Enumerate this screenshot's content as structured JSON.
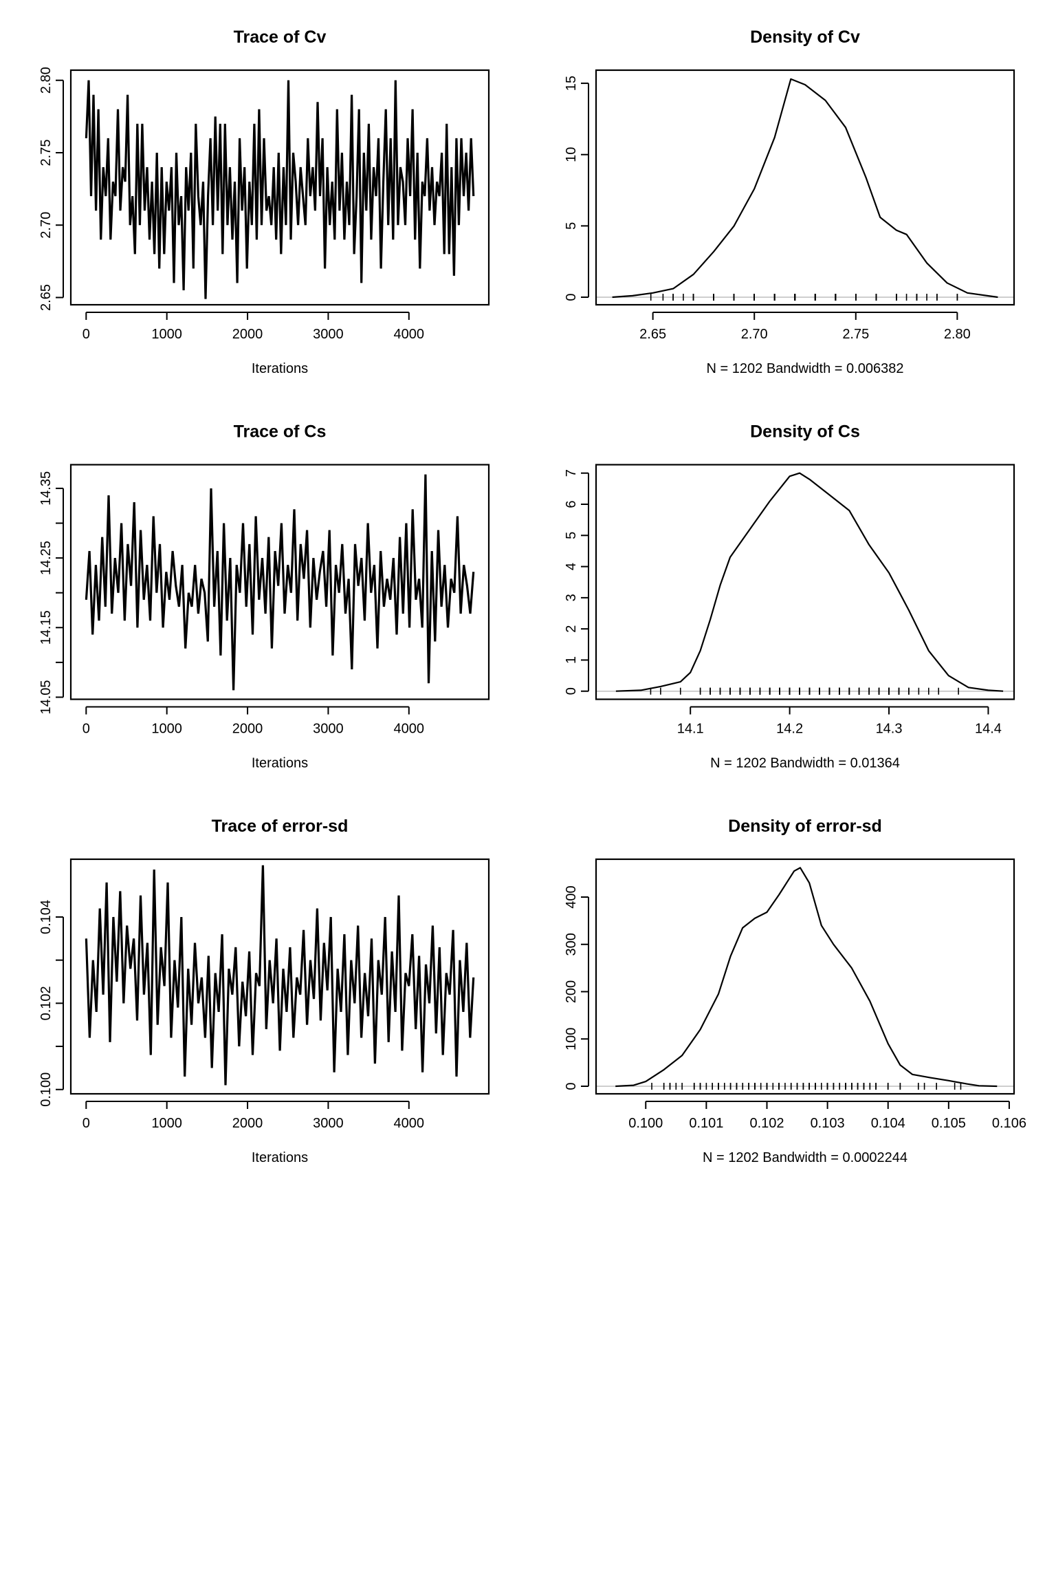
{
  "chart_data": [
    {
      "type": "line",
      "title": "Trace of Cv",
      "xlabel": "Iterations",
      "xlim": [
        -190,
        4990
      ],
      "ylim": [
        2.645,
        2.807
      ],
      "xticks": [
        0,
        1000,
        2000,
        3000,
        4000
      ],
      "xtick_labels": [
        "0",
        "1000",
        "2000",
        "3000",
        "4000"
      ],
      "yticks": [
        2.65,
        2.7,
        2.75,
        2.8
      ],
      "ytick_labels": [
        "2.65",
        "2.70",
        "2.75",
        "2.80"
      ],
      "x_start": 1,
      "x_end": 4800,
      "values": [
        2.76,
        2.8,
        2.72,
        2.79,
        2.71,
        2.78,
        2.69,
        2.74,
        2.72,
        2.76,
        2.69,
        2.73,
        2.72,
        2.78,
        2.71,
        2.74,
        2.73,
        2.79,
        2.7,
        2.72,
        2.68,
        2.77,
        2.7,
        2.77,
        2.71,
        2.74,
        2.69,
        2.73,
        2.68,
        2.75,
        2.67,
        2.74,
        2.68,
        2.73,
        2.71,
        2.74,
        2.66,
        2.75,
        2.7,
        2.72,
        2.655,
        2.74,
        2.71,
        2.75,
        2.67,
        2.77,
        2.72,
        2.7,
        2.73,
        2.649,
        2.72,
        2.76,
        2.7,
        2.775,
        2.71,
        2.77,
        2.68,
        2.77,
        2.7,
        2.74,
        2.69,
        2.73,
        2.66,
        2.76,
        2.71,
        2.74,
        2.67,
        2.73,
        2.7,
        2.77,
        2.69,
        2.78,
        2.7,
        2.76,
        2.71,
        2.72,
        2.7,
        2.74,
        2.69,
        2.75,
        2.68,
        2.74,
        2.7,
        2.8,
        2.69,
        2.75,
        2.73,
        2.7,
        2.74,
        2.72,
        2.7,
        2.76,
        2.72,
        2.74,
        2.71,
        2.785,
        2.72,
        2.76,
        2.67,
        2.74,
        2.7,
        2.73,
        2.69,
        2.78,
        2.71,
        2.75,
        2.69,
        2.73,
        2.7,
        2.79,
        2.68,
        2.72,
        2.78,
        2.66,
        2.75,
        2.71,
        2.77,
        2.69,
        2.74,
        2.72,
        2.76,
        2.67,
        2.73,
        2.78,
        2.7,
        2.76,
        2.69,
        2.8,
        2.7,
        2.74,
        2.73,
        2.7,
        2.76,
        2.72,
        2.78,
        2.69,
        2.75,
        2.67,
        2.73,
        2.72,
        2.76,
        2.71,
        2.74,
        2.7,
        2.73,
        2.72,
        2.75,
        2.68,
        2.77,
        2.68,
        2.74,
        2.665,
        2.76,
        2.7,
        2.76,
        2.72,
        2.75,
        2.71,
        2.76,
        2.72
      ]
    },
    {
      "type": "line",
      "title": "Density of Cv",
      "xlabel": "N = 1202   Bandwidth = 0.006382",
      "xlim": [
        2.622,
        2.828
      ],
      "ylim": [
        -0.53,
        15.92
      ],
      "xticks": [
        2.65,
        2.7,
        2.75,
        2.8
      ],
      "xtick_labels": [
        "2.65",
        "2.70",
        "2.75",
        "2.80"
      ],
      "yticks": [
        0,
        5,
        10,
        15
      ],
      "ytick_labels": [
        "0",
        "5",
        "10",
        "15"
      ],
      "x": [
        2.63,
        2.64,
        2.65,
        2.66,
        2.67,
        2.68,
        2.69,
        2.7,
        2.71,
        2.718,
        2.725,
        2.735,
        2.745,
        2.755,
        2.762,
        2.77,
        2.775,
        2.785,
        2.795,
        2.805,
        2.82
      ],
      "y": [
        0.0,
        0.1,
        0.3,
        0.6,
        1.6,
        3.2,
        5.0,
        7.6,
        11.2,
        15.3,
        14.9,
        13.8,
        11.9,
        8.4,
        5.6,
        4.7,
        4.4,
        2.4,
        1.0,
        0.3,
        0.0
      ],
      "rug_from": 0
    },
    {
      "type": "line",
      "title": "Trace of Cs",
      "xlabel": "Iterations",
      "xlim": [
        -190,
        4990
      ],
      "ylim": [
        14.047,
        14.384
      ],
      "xticks": [
        0,
        1000,
        2000,
        3000,
        4000
      ],
      "xtick_labels": [
        "0",
        "1000",
        "2000",
        "3000",
        "4000"
      ],
      "yticks": [
        14.05,
        14.1,
        14.15,
        14.2,
        14.25,
        14.3,
        14.35
      ],
      "ytick_labels": [
        "14.05",
        "",
        "14.15",
        "",
        "14.25",
        "",
        "14.35"
      ],
      "x_start": 1,
      "x_end": 4800,
      "values": [
        14.19,
        14.26,
        14.14,
        14.24,
        14.16,
        14.28,
        14.18,
        14.34,
        14.17,
        14.25,
        14.2,
        14.3,
        14.16,
        14.27,
        14.21,
        14.33,
        14.15,
        14.29,
        14.19,
        14.24,
        14.16,
        14.31,
        14.2,
        14.27,
        14.15,
        14.23,
        14.19,
        14.26,
        14.21,
        14.18,
        14.24,
        14.12,
        14.2,
        14.18,
        14.24,
        14.17,
        14.22,
        14.2,
        14.13,
        14.35,
        14.18,
        14.26,
        14.11,
        14.3,
        14.16,
        14.25,
        14.06,
        14.24,
        14.2,
        14.3,
        14.18,
        14.27,
        14.14,
        14.31,
        14.19,
        14.25,
        14.17,
        14.28,
        14.12,
        14.26,
        14.21,
        14.3,
        14.17,
        14.24,
        14.2,
        14.32,
        14.16,
        14.27,
        14.22,
        14.29,
        14.15,
        14.25,
        14.19,
        14.23,
        14.26,
        14.18,
        14.29,
        14.11,
        14.24,
        14.2,
        14.27,
        14.17,
        14.22,
        14.09,
        14.27,
        14.21,
        14.25,
        14.16,
        14.3,
        14.2,
        14.24,
        14.12,
        14.26,
        14.18,
        14.22,
        14.19,
        14.25,
        14.14,
        14.28,
        14.17,
        14.3,
        14.15,
        14.32,
        14.19,
        14.22,
        14.15,
        14.37,
        14.07,
        14.26,
        14.13,
        14.29,
        14.18,
        14.24,
        14.15,
        14.22,
        14.2,
        14.31,
        14.17,
        14.24,
        14.21,
        14.17,
        14.23
      ]
    },
    {
      "type": "line",
      "title": "Density of Cs",
      "xlabel": "N = 1202   Bandwidth = 0.01364",
      "xlim": [
        14.005,
        14.426
      ],
      "ylim": [
        -0.26,
        7.27
      ],
      "xticks": [
        14.1,
        14.2,
        14.3,
        14.4
      ],
      "xtick_labels": [
        "14.1",
        "14.2",
        "14.3",
        "14.4"
      ],
      "yticks": [
        0,
        1,
        2,
        3,
        4,
        5,
        6,
        7
      ],
      "ytick_labels": [
        "0",
        "1",
        "2",
        "3",
        "4",
        "5",
        "6",
        "7"
      ],
      "x": [
        14.025,
        14.05,
        14.07,
        14.09,
        14.1,
        14.11,
        14.12,
        14.13,
        14.14,
        14.16,
        14.18,
        14.2,
        14.21,
        14.22,
        14.24,
        14.26,
        14.28,
        14.3,
        14.31,
        14.32,
        14.34,
        14.36,
        14.38,
        14.4,
        14.415
      ],
      "y": [
        0.0,
        0.03,
        0.15,
        0.3,
        0.6,
        1.3,
        2.3,
        3.4,
        4.3,
        5.2,
        6.1,
        6.9,
        7.0,
        6.8,
        6.3,
        5.8,
        4.7,
        3.8,
        3.2,
        2.6,
        1.3,
        0.5,
        0.12,
        0.03,
        0.0
      ],
      "rug_from": 2
    },
    {
      "type": "line",
      "title": "Trace of error-sd",
      "xlabel": "Iterations",
      "xlim": [
        -190,
        4990
      ],
      "ylim": [
        0.0999,
        0.10534
      ],
      "xticks": [
        0,
        1000,
        2000,
        3000,
        4000
      ],
      "xtick_labels": [
        "0",
        "1000",
        "2000",
        "3000",
        "4000"
      ],
      "yticks": [
        0.1,
        0.101,
        0.102,
        0.103,
        0.104
      ],
      "ytick_labels": [
        "0.100",
        "",
        "0.102",
        "",
        "0.104"
      ],
      "x_start": 1,
      "x_end": 4800,
      "values": [
        0.1035,
        0.1012,
        0.103,
        0.1018,
        0.1042,
        0.1022,
        0.1048,
        0.1011,
        0.104,
        0.1025,
        0.1046,
        0.102,
        0.1038,
        0.1028,
        0.1035,
        0.1016,
        0.1045,
        0.1022,
        0.1034,
        0.1008,
        0.1051,
        0.1015,
        0.1033,
        0.1024,
        0.1048,
        0.1012,
        0.103,
        0.1019,
        0.104,
        0.1003,
        0.1028,
        0.1015,
        0.1034,
        0.102,
        0.1026,
        0.1012,
        0.1031,
        0.1005,
        0.1027,
        0.1018,
        0.1036,
        0.1001,
        0.1028,
        0.1022,
        0.1033,
        0.101,
        0.1025,
        0.1017,
        0.1032,
        0.1008,
        0.1027,
        0.1024,
        0.1052,
        0.1014,
        0.103,
        0.102,
        0.1035,
        0.1009,
        0.1028,
        0.1018,
        0.1033,
        0.1012,
        0.1026,
        0.1022,
        0.1037,
        0.1015,
        0.103,
        0.1021,
        0.1042,
        0.1016,
        0.1034,
        0.1023,
        0.104,
        0.1004,
        0.1028,
        0.1018,
        0.1036,
        0.1008,
        0.103,
        0.102,
        0.1038,
        0.1012,
        0.1027,
        0.1017,
        0.1035,
        0.1006,
        0.103,
        0.1022,
        0.104,
        0.1011,
        0.1032,
        0.1018,
        0.1045,
        0.1009,
        0.1027,
        0.1024,
        0.1036,
        0.1014,
        0.1031,
        0.1004,
        0.1029,
        0.102,
        0.1038,
        0.1013,
        0.1033,
        0.1008,
        0.1027,
        0.1022,
        0.1037,
        0.1003,
        0.103,
        0.1018,
        0.1034,
        0.1012,
        0.1026
      ]
    },
    {
      "type": "line",
      "title": "Density of error-sd",
      "xlabel": "N = 1202   Bandwidth = 0.0002244",
      "xlim": [
        0.09918,
        0.10608
      ],
      "ylim": [
        -16,
        480
      ],
      "xticks": [
        0.1,
        0.101,
        0.102,
        0.103,
        0.104,
        0.105,
        0.106
      ],
      "xtick_labels": [
        "0.100",
        "0.101",
        "0.102",
        "0.103",
        "0.104",
        "0.105",
        "0.106"
      ],
      "yticks": [
        0,
        100,
        200,
        300,
        400
      ],
      "ytick_labels": [
        "0",
        "100",
        "200",
        "300",
        "400"
      ],
      "x": [
        0.0995,
        0.0998,
        0.1,
        0.1003,
        0.1006,
        0.1009,
        0.1012,
        0.1014,
        0.1016,
        0.1018,
        0.102,
        0.1022,
        0.10245,
        0.10255,
        0.1027,
        0.1029,
        0.1031,
        0.1034,
        0.1037,
        0.104,
        0.1042,
        0.1044,
        0.1047,
        0.105,
        0.1053,
        0.1055,
        0.1058
      ],
      "y": [
        0,
        2,
        10,
        35,
        65,
        120,
        195,
        275,
        335,
        355,
        368,
        405,
        455,
        462,
        430,
        340,
        300,
        250,
        180,
        90,
        45,
        25,
        18,
        12,
        5,
        1,
        0
      ],
      "rug_from": 4
    }
  ]
}
